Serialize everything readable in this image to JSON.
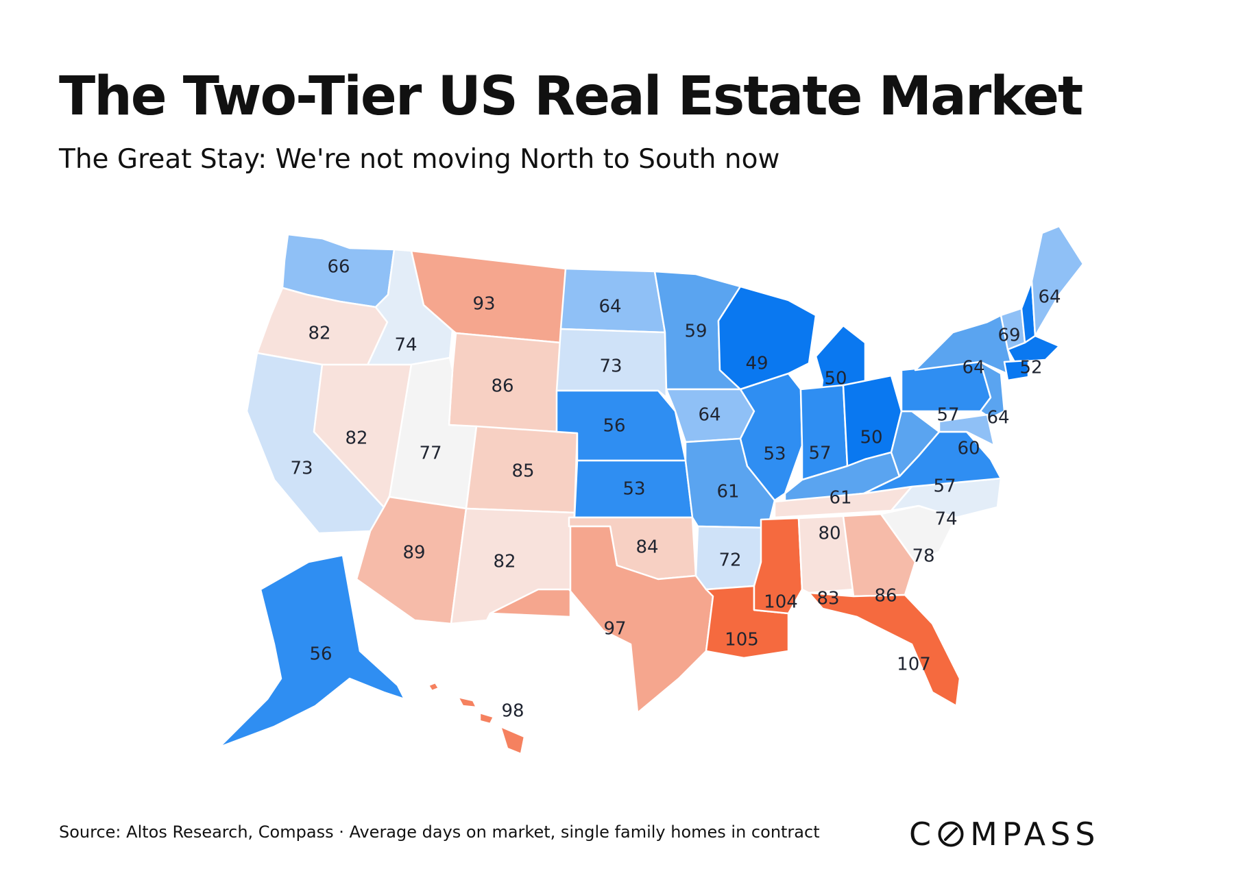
{
  "title": "The Two-Tier US Real Estate Market",
  "subtitle": "The Great Stay: We're not moving North to South now",
  "source": "Source: Altos Research, Compass · Average days on market, single family homes in contract",
  "brand": {
    "name": "COMPASS",
    "prefix": "C",
    "suffix": "MPASS",
    "color": "#111111"
  },
  "map_data": {
    "metric": "Average days on market",
    "colors": {
      "deep_blue": "#0a78f0",
      "blue": "#2f8ef2",
      "mid_blue": "#5aa4f0",
      "light_blue": "#8fc0f6",
      "pale_blue": "#cfe2f8",
      "faint_blue": "#e3edf8",
      "neutral": "#f4f4f4",
      "faint_red": "#f8e2dc",
      "pale_red": "#f7d0c3",
      "light_red": "#f6bba9",
      "mid_red": "#f5a68e",
      "red": "#f5815f",
      "deep_red": "#f56a3f"
    },
    "states": [
      {
        "code": "WA",
        "value": 66
      },
      {
        "code": "OR",
        "value": 82
      },
      {
        "code": "CA",
        "value": 73
      },
      {
        "code": "ID",
        "value": 74
      },
      {
        "code": "NV",
        "value": 82
      },
      {
        "code": "MT",
        "value": 93
      },
      {
        "code": "WY",
        "value": 86
      },
      {
        "code": "UT",
        "value": 77
      },
      {
        "code": "AZ",
        "value": 89
      },
      {
        "code": "CO",
        "value": 85
      },
      {
        "code": "NM",
        "value": 82
      },
      {
        "code": "ND",
        "value": 64
      },
      {
        "code": "SD",
        "value": 73
      },
      {
        "code": "NE",
        "value": 56
      },
      {
        "code": "KS",
        "value": 53
      },
      {
        "code": "OK",
        "value": 84
      },
      {
        "code": "TX",
        "value": 97
      },
      {
        "code": "MN",
        "value": 59
      },
      {
        "code": "IA",
        "value": 64
      },
      {
        "code": "MO",
        "value": 61
      },
      {
        "code": "AR",
        "value": 72
      },
      {
        "code": "LA",
        "value": 105
      },
      {
        "code": "WI",
        "value": 49
      },
      {
        "code": "IL",
        "value": 53
      },
      {
        "code": "MI",
        "value": 50
      },
      {
        "code": "IN",
        "value": 57
      },
      {
        "code": "OH",
        "value": 50
      },
      {
        "code": "KY",
        "value": 61
      },
      {
        "code": "TN",
        "value": 80
      },
      {
        "code": "MS",
        "value": 104
      },
      {
        "code": "AL",
        "value": 83
      },
      {
        "code": "GA",
        "value": 86
      },
      {
        "code": "FL",
        "value": 107
      },
      {
        "code": "SC",
        "value": 78
      },
      {
        "code": "NC",
        "value": 74
      },
      {
        "code": "VA",
        "value": 57
      },
      {
        "code": "WV",
        "value": 60
      },
      {
        "code": "PA",
        "value": 57
      },
      {
        "code": "NY",
        "value": 64
      },
      {
        "code": "NJ",
        "value": 64
      },
      {
        "code": "VT",
        "value": 69
      },
      {
        "code": "NH",
        "value": 52
      },
      {
        "code": "ME",
        "value": 64
      },
      {
        "code": "AK",
        "value": 56
      },
      {
        "code": "HI",
        "value": 98
      }
    ]
  }
}
